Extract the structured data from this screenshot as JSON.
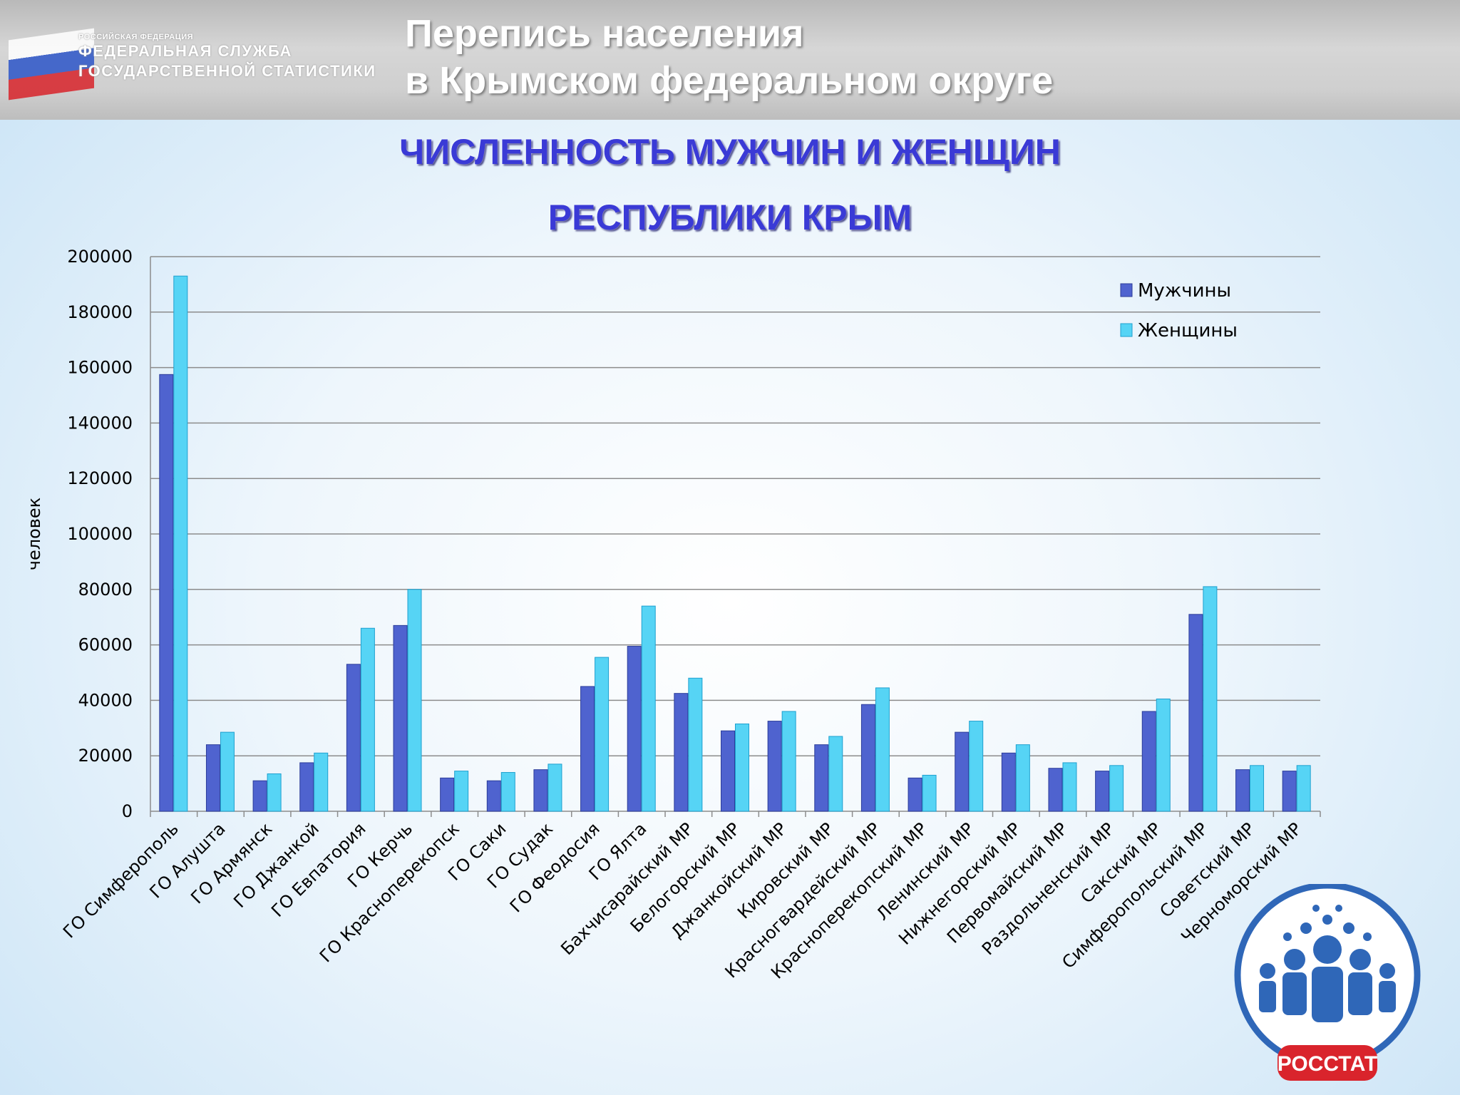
{
  "header": {
    "agency_small": "РОССИЙСКАЯ ФЕДЕРАЦИЯ",
    "agency_line1": "ФЕДЕРАЛЬНАЯ СЛУЖБА",
    "agency_line2": "ГОСУДАРСТВЕННОЙ СТАТИСТИКИ",
    "census_line1": "Перепись населения",
    "census_line2": "в Крымском федеральном округе"
  },
  "logo": {
    "text": "РОССТАТ",
    "icon": "rosstat-people-icon"
  },
  "colors": {
    "men": "#4f63cf",
    "women": "#56d4f5",
    "title": "#3a3ad6"
  },
  "chart_data": {
    "type": "bar",
    "title_line1": "ЧИСЛЕННОСТЬ МУЖЧИН И ЖЕНЩИН",
    "title_line2": "РЕСПУБЛИКИ КРЫМ",
    "xlabel": "",
    "ylabel": "человек",
    "ylim": [
      0,
      200000
    ],
    "yticks": [
      0,
      20000,
      40000,
      60000,
      80000,
      100000,
      120000,
      140000,
      160000,
      180000,
      200000
    ],
    "grid": true,
    "legend_position": "top-right",
    "categories": [
      "ГО Симферополь",
      "ГО Алушта",
      "ГО Армянск",
      "ГО Джанкой",
      "ГО Евпатория",
      "ГО Керчь",
      "ГО Красноперекопск",
      "ГО Саки",
      "ГО Судак",
      "ГО Феодосия",
      "ГО Ялта",
      "Бахчисарайский МР",
      "Белогорский МР",
      "Джанкойский МР",
      "Кировский МР",
      "Красногвардейский МР",
      "Красноперекопский МР",
      "Ленинский МР",
      "Нижнегорский МР",
      "Первомайский МР",
      "Раздольненский МР",
      "Сакский МР",
      "Симферопольский МР",
      "Советский МР",
      "Черноморский МР"
    ],
    "series": [
      {
        "name": "Мужчины",
        "values": [
          157500,
          24000,
          11000,
          17500,
          53000,
          67000,
          12000,
          11000,
          15000,
          45000,
          59500,
          42500,
          29000,
          32500,
          24000,
          38500,
          12000,
          28500,
          21000,
          15500,
          14500,
          36000,
          71000,
          15000,
          14500
        ]
      },
      {
        "name": "Женщины",
        "values": [
          193000,
          28500,
          13500,
          21000,
          66000,
          80000,
          14500,
          14000,
          17000,
          55500,
          74000,
          48000,
          31500,
          36000,
          27000,
          44500,
          13000,
          32500,
          24000,
          17500,
          16500,
          40500,
          81000,
          16500,
          16500
        ]
      }
    ]
  }
}
